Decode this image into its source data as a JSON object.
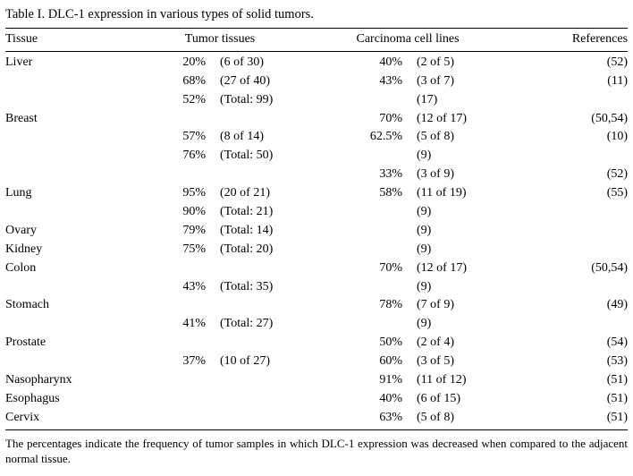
{
  "caption": "Table I. DLC-1 expression in various types of solid tumors.",
  "headers": {
    "tissue": "Tissue",
    "tumor": "Tumor tissues",
    "cell": "Carcinoma cell lines",
    "refs": "References"
  },
  "rows": [
    {
      "tissue": "Liver",
      "tt_pct": "20%",
      "tt_det": "(6 of 30)",
      "cc_pct": "40%",
      "cc_det": "(2 of 5)",
      "ref": "(52)"
    },
    {
      "tissue": "",
      "tt_pct": "68%",
      "tt_det": "(27 of 40)",
      "cc_pct": "43%",
      "cc_det": "(3 of 7)",
      "ref": "(11)"
    },
    {
      "tissue": "",
      "tt_pct": "52%",
      "tt_det": "(Total: 99)",
      "cc_pct": "",
      "cc_det": "(17)",
      "ref": ""
    },
    {
      "tissue": "Breast",
      "tt_pct": "",
      "tt_det": "",
      "cc_pct": "70%",
      "cc_det": "(12 of 17)",
      "ref": "(50,54)"
    },
    {
      "tissue": "",
      "tt_pct": "57%",
      "tt_det": "(8 of 14)",
      "cc_pct": "62.5%",
      "cc_det": "(5 of 8)",
      "ref": "(10)"
    },
    {
      "tissue": "",
      "tt_pct": "76%",
      "tt_det": "(Total: 50)",
      "cc_pct": "",
      "cc_det": "(9)",
      "ref": ""
    },
    {
      "tissue": "",
      "tt_pct": "",
      "tt_det": "",
      "cc_pct": "33%",
      "cc_det": "(3 of 9)",
      "ref": "(52)"
    },
    {
      "tissue": "Lung",
      "tt_pct": "95%",
      "tt_det": "(20 of 21)",
      "cc_pct": "58%",
      "cc_det": "(11 of 19)",
      "ref": "(55)"
    },
    {
      "tissue": "",
      "tt_pct": "90%",
      "tt_det": "(Total: 21)",
      "cc_pct": "",
      "cc_det": "(9)",
      "ref": ""
    },
    {
      "tissue": "Ovary",
      "tt_pct": "79%",
      "tt_det": "(Total: 14)",
      "cc_pct": "",
      "cc_det": "(9)",
      "ref": ""
    },
    {
      "tissue": "Kidney",
      "tt_pct": "75%",
      "tt_det": "(Total: 20)",
      "cc_pct": "",
      "cc_det": "(9)",
      "ref": ""
    },
    {
      "tissue": "Colon",
      "tt_pct": "",
      "tt_det": "",
      "cc_pct": "70%",
      "cc_det": "(12 of 17)",
      "ref": "(50,54)"
    },
    {
      "tissue": "",
      "tt_pct": "43%",
      "tt_det": "(Total: 35)",
      "cc_pct": "",
      "cc_det": "(9)",
      "ref": ""
    },
    {
      "tissue": "Stomach",
      "tt_pct": "",
      "tt_det": "",
      "cc_pct": "78%",
      "cc_det": "(7 of 9)",
      "ref": "(49)"
    },
    {
      "tissue": "",
      "tt_pct": "41%",
      "tt_det": "(Total: 27)",
      "cc_pct": "",
      "cc_det": "(9)",
      "ref": ""
    },
    {
      "tissue": "Prostate",
      "tt_pct": "",
      "tt_det": "",
      "cc_pct": "50%",
      "cc_det": "(2 of 4)",
      "ref": "(54)"
    },
    {
      "tissue": "",
      "tt_pct": "37%",
      "tt_det": "(10 of 27)",
      "cc_pct": "60%",
      "cc_det": "(3 of 5)",
      "ref": "(53)"
    },
    {
      "tissue": "Nasopharynx",
      "tt_pct": "",
      "tt_det": "",
      "cc_pct": "91%",
      "cc_det": "(11 of 12)",
      "ref": "(51)"
    },
    {
      "tissue": "Esophagus",
      "tt_pct": "",
      "tt_det": "",
      "cc_pct": "40%",
      "cc_det": "(6 of 15)",
      "ref": "(51)"
    },
    {
      "tissue": "Cervix",
      "tt_pct": "",
      "tt_det": "",
      "cc_pct": "63%",
      "cc_det": "(5 of 8)",
      "ref": "(51)"
    }
  ],
  "footnote": "The percentages indicate the frequency of tumor samples in which DLC-1 expression was decreased when compared to the adjacent normal tissue.",
  "style": {
    "font_family": "Times New Roman",
    "font_size_body_pt": 10.5,
    "font_size_foot_pt": 9.5,
    "rule_color": "#000000",
    "text_color": "#000000",
    "background_color": "#ffffff",
    "columns": {
      "tissue_align": "left",
      "tumor_pct_align": "right",
      "tumor_detail_align": "left",
      "cell_pct_align": "right",
      "cell_detail_align": "left",
      "refs_align": "right"
    }
  }
}
